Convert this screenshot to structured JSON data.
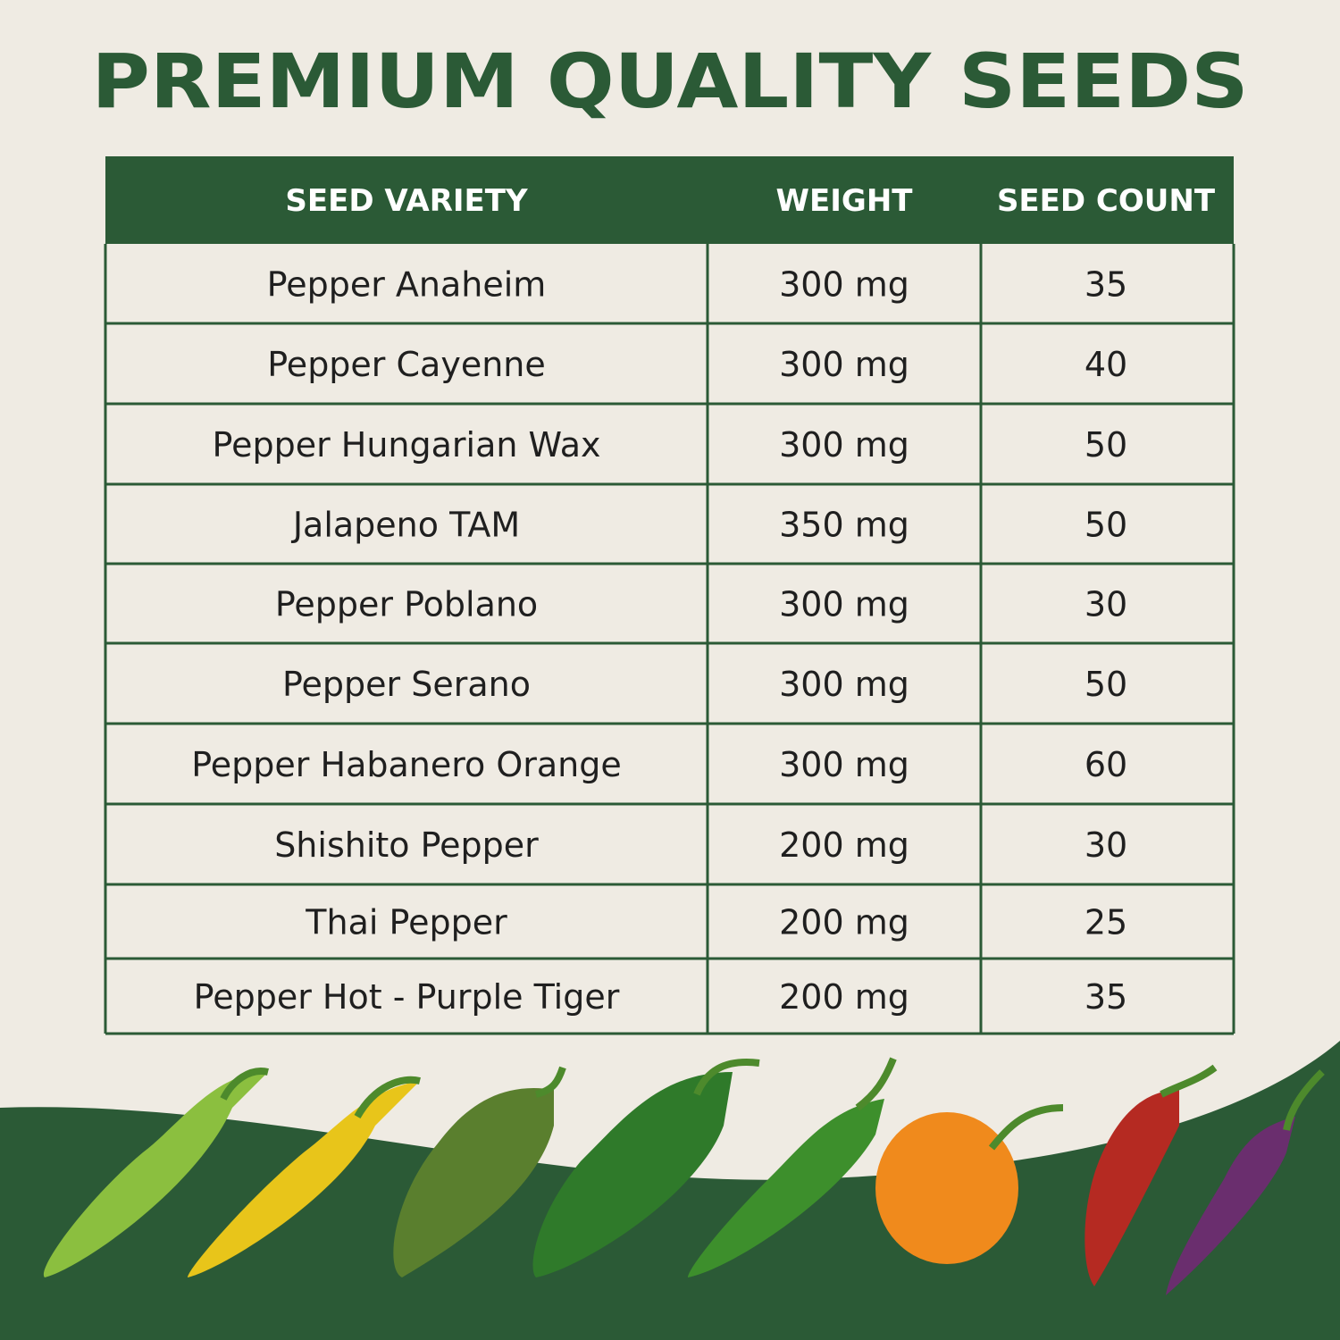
{
  "header": {
    "title": "PREMIUM QUALITY SEEDS"
  },
  "table": {
    "columns": [
      "SEED VARIETY",
      "WEIGHT",
      "SEED COUNT"
    ],
    "rows": [
      [
        "Pepper Anaheim",
        "300 mg",
        35
      ],
      [
        "Pepper Cayenne",
        "300 mg",
        40
      ],
      [
        "Pepper Hungarian Wax",
        "300 mg",
        50
      ],
      [
        "Jalapeno TAM",
        "350 mg",
        50
      ],
      [
        "Pepper Poblano",
        "300 mg",
        30
      ],
      [
        "Pepper Serano",
        "300 mg",
        50
      ],
      [
        "Pepper Habanero Orange",
        "300 mg",
        60
      ],
      [
        "Shishito Pepper",
        "200 mg",
        30
      ],
      [
        "Thai Pepper",
        "200 mg",
        25
      ],
      [
        "Pepper Hot - Purple Tiger",
        "200 mg",
        35
      ]
    ]
  }
}
